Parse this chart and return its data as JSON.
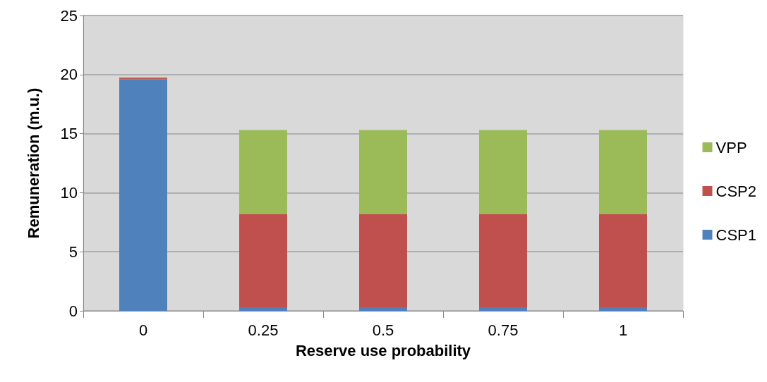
{
  "chart_data": {
    "type": "bar",
    "stacked": true,
    "xlabel": "Reserve use probability",
    "ylabel": "Remuneration (m.u.)",
    "categories": [
      "0",
      "0.25",
      "0.5",
      "0.75",
      "1"
    ],
    "series": [
      {
        "name": "CSP1",
        "color": "#4f81bd",
        "values": [
          19.6,
          0.3,
          0.3,
          0.3,
          0.3
        ]
      },
      {
        "name": "CSP2",
        "color": "#c0504d",
        "values": [
          0.1,
          7.9,
          7.9,
          7.9,
          7.9
        ]
      },
      {
        "name": "VPP",
        "color": "#9bbb59",
        "values": [
          0.1,
          7.1,
          7.1,
          7.1,
          7.1
        ]
      }
    ],
    "ylim": [
      0,
      25
    ],
    "yticks": [
      0,
      5,
      10,
      15,
      20,
      25
    ],
    "grid": "y",
    "legend": "right"
  }
}
